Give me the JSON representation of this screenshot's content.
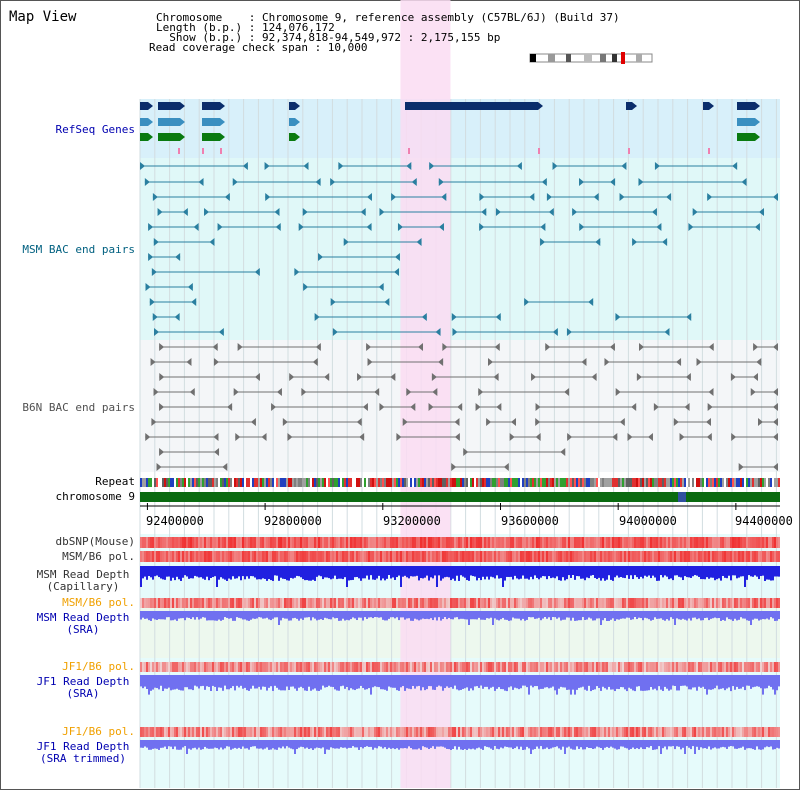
{
  "header": {
    "title": "Map View",
    "chromosome_line": "Chromosome    : Chromosome 9, reference assembly (C57BL/6J) (Build 37)",
    "length_line": "Length (b.p.) : 124,076,172",
    "show_line": "  Show (b.p.) : 92,374,818-94,549,972 : 2,175,155 bp",
    "coverage_line": "Read coverage check span : 10,000"
  },
  "tracks": {
    "refseq": "RefSeq Genes",
    "msm_bac": "MSM BAC end pairs",
    "b6n_bac": "B6N BAC end pairs",
    "repeat": "Repeat",
    "chromosome": "chromosome 9",
    "dbsnp": "dbSNP(Mouse)",
    "msm_b6_pol_1": "MSM/B6 pol.",
    "msm_depth_cap_1": "MSM Read Depth",
    "msm_depth_cap_2": "(Capillary)",
    "msm_b6_pol_2": "MSM/B6 pol.",
    "msm_depth_sra_1": "MSM Read Depth",
    "msm_depth_sra_2": "(SRA)",
    "jf1_b6_pol_1": "JF1/B6 pol.",
    "jf1_depth_sra_1": "JF1 Read Depth",
    "jf1_depth_sra_2": "(SRA)",
    "jf1_b6_pol_2": "JF1/B6 pol.",
    "jf1_depth_trim_1": "JF1 Read Depth",
    "jf1_depth_trim_2": "(SRA trimmed)"
  },
  "axis": {
    "start_bp": 92374818,
    "end_bp": 94549972,
    "ticks": [
      "92400000",
      "92800000",
      "93200000",
      "93600000",
      "94000000",
      "94400000"
    ]
  },
  "highlight": {
    "start_bp": 93260000,
    "end_bp": 93430000
  },
  "colors": {
    "refseq_bg": "#d8f0fa",
    "msm_bg": "#e0f8f8",
    "b6n_bg": "#f4f6f8",
    "highlight": "#fadcf2",
    "refseq_dark": "#0b2d6b",
    "refseq_mid": "#3a8fc0",
    "refseq_green": "#0a7a10",
    "msm_pair": "#2a7fa0",
    "b6n_pair": "#707070",
    "chromosome": "#0a6a10",
    "snp_red": "#f04040",
    "depth_blue": "#2020e0",
    "depth_light": "#7070f0",
    "label_blue": "#0000b0",
    "label_orange": "#f0a000"
  }
}
